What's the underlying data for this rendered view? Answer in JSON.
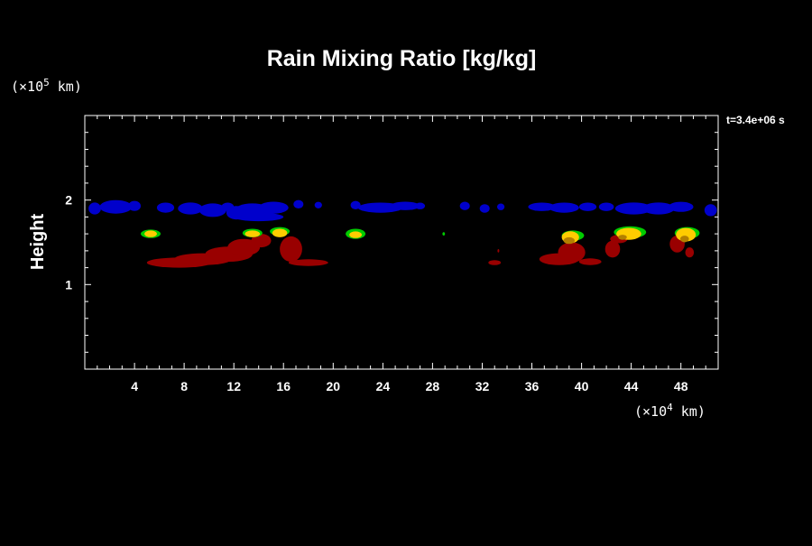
{
  "chart_data": {
    "type": "heatmap",
    "title": "Rain Mixing Ratio [kg/kg]",
    "ylabel": "Height",
    "y_unit_prefix": "(×10",
    "y_unit_exp": "5",
    "y_unit_suffix": " km)",
    "x_unit_prefix": "(×10",
    "x_unit_exp": "4",
    "x_unit_suffix": " km)",
    "time_label": "t=3.4e+06 s",
    "xlim": [
      0,
      51
    ],
    "ylim": [
      0,
      3
    ],
    "x_ticks": [
      4,
      8,
      12,
      16,
      20,
      24,
      28,
      32,
      36,
      40,
      44,
      48
    ],
    "y_ticks": [
      1,
      2
    ],
    "background": "#000000",
    "colors": {
      "level1": "#0000cc",
      "level2": "#990000",
      "level3": "#00cc00",
      "level4": "#ffcc00",
      "level5": "#b38000"
    },
    "layers": [
      {
        "level": "level1",
        "blobs": [
          [
            0.8,
            1.9,
            0.5,
            0.07
          ],
          [
            2.5,
            1.92,
            1.3,
            0.08
          ],
          [
            4.0,
            1.93,
            0.5,
            0.06
          ],
          [
            6.5,
            1.91,
            0.7,
            0.06
          ],
          [
            8.5,
            1.9,
            1.0,
            0.07
          ],
          [
            10.3,
            1.88,
            1.1,
            0.08
          ],
          [
            11.5,
            1.92,
            0.5,
            0.05
          ],
          [
            12.2,
            1.85,
            0.8,
            0.08
          ],
          [
            13.5,
            1.87,
            1.5,
            0.09
          ],
          [
            15.2,
            1.91,
            1.2,
            0.07
          ],
          [
            14.0,
            1.8,
            2.0,
            0.05
          ],
          [
            17.2,
            1.95,
            0.4,
            0.05
          ],
          [
            18.8,
            1.94,
            0.3,
            0.04
          ],
          [
            21.8,
            1.94,
            0.4,
            0.05
          ],
          [
            23.8,
            1.91,
            1.8,
            0.06
          ],
          [
            25.8,
            1.93,
            1.2,
            0.05
          ],
          [
            27.0,
            1.93,
            0.4,
            0.04
          ],
          [
            30.6,
            1.93,
            0.4,
            0.05
          ],
          [
            32.2,
            1.9,
            0.4,
            0.05
          ],
          [
            33.5,
            1.92,
            0.3,
            0.04
          ],
          [
            36.8,
            1.92,
            1.1,
            0.05
          ],
          [
            38.6,
            1.91,
            1.2,
            0.06
          ],
          [
            40.5,
            1.92,
            0.7,
            0.05
          ],
          [
            42.0,
            1.92,
            0.6,
            0.05
          ],
          [
            44.2,
            1.9,
            1.5,
            0.07
          ],
          [
            46.2,
            1.9,
            1.3,
            0.07
          ],
          [
            48.0,
            1.92,
            1.0,
            0.06
          ],
          [
            50.4,
            1.88,
            0.5,
            0.07
          ]
        ]
      },
      {
        "level": "level2",
        "blobs": [
          [
            7.6,
            1.26,
            2.6,
            0.06
          ],
          [
            9.5,
            1.3,
            2.3,
            0.07
          ],
          [
            11.6,
            1.36,
            1.9,
            0.09
          ],
          [
            12.8,
            1.44,
            1.3,
            0.1
          ],
          [
            14.2,
            1.52,
            0.8,
            0.08
          ],
          [
            16.6,
            1.42,
            0.9,
            0.15
          ],
          [
            18.0,
            1.26,
            1.6,
            0.04
          ],
          [
            33.0,
            1.26,
            0.5,
            0.03
          ],
          [
            33.3,
            1.4,
            0.06,
            0.02
          ],
          [
            38.2,
            1.3,
            1.6,
            0.07
          ],
          [
            39.2,
            1.38,
            1.1,
            0.12
          ],
          [
            40.7,
            1.27,
            0.9,
            0.04
          ],
          [
            42.5,
            1.42,
            0.6,
            0.1
          ],
          [
            43.0,
            1.54,
            0.7,
            0.05
          ],
          [
            47.7,
            1.48,
            0.6,
            0.1
          ],
          [
            48.7,
            1.38,
            0.35,
            0.06
          ]
        ]
      },
      {
        "level": "level3",
        "blobs": [
          [
            5.3,
            1.6,
            0.8,
            0.05
          ],
          [
            13.5,
            1.61,
            0.8,
            0.05
          ],
          [
            15.7,
            1.63,
            0.8,
            0.05
          ],
          [
            21.8,
            1.6,
            0.8,
            0.06
          ],
          [
            28.9,
            1.6,
            0.1,
            0.02
          ],
          [
            39.3,
            1.58,
            0.9,
            0.06
          ],
          [
            43.9,
            1.62,
            1.3,
            0.07
          ],
          [
            48.5,
            1.61,
            1.0,
            0.07
          ]
        ]
      },
      {
        "level": "level4",
        "blobs": [
          [
            5.3,
            1.6,
            0.5,
            0.04
          ],
          [
            13.5,
            1.6,
            0.6,
            0.04
          ],
          [
            15.7,
            1.61,
            0.6,
            0.05
          ],
          [
            21.8,
            1.59,
            0.5,
            0.04
          ],
          [
            39.1,
            1.56,
            0.7,
            0.07
          ],
          [
            43.8,
            1.6,
            1.0,
            0.07
          ],
          [
            48.4,
            1.59,
            0.8,
            0.08
          ]
        ]
      },
      {
        "level": "level5",
        "blobs": [
          [
            39.0,
            1.52,
            0.45,
            0.04
          ],
          [
            43.3,
            1.56,
            0.35,
            0.03
          ],
          [
            48.3,
            1.54,
            0.35,
            0.04
          ]
        ]
      }
    ]
  }
}
